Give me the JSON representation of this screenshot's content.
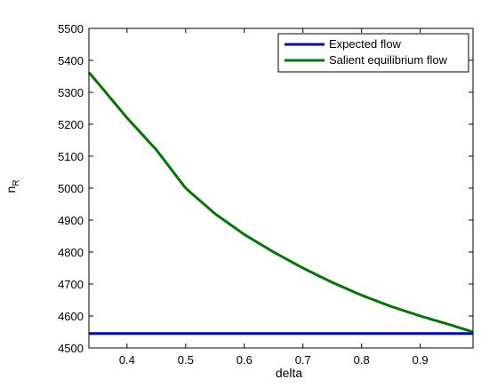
{
  "chart_data": {
    "type": "line",
    "xlabel": "delta",
    "ylabel": "n",
    "ylabel_subscript": "R",
    "xlim": [
      0.335,
      0.99
    ],
    "ylim": [
      4500,
      5500
    ],
    "xticks": [
      "0.4",
      "0.5",
      "0.6",
      "0.7",
      "0.8",
      "0.9"
    ],
    "xtick_values": [
      0.4,
      0.5,
      0.6,
      0.7,
      0.8,
      0.9
    ],
    "yticks": [
      "4500",
      "4600",
      "4700",
      "4800",
      "4900",
      "5000",
      "5100",
      "5200",
      "5300",
      "5400",
      "5500"
    ],
    "ytick_values": [
      4500,
      4600,
      4700,
      4800,
      4900,
      5000,
      5100,
      5200,
      5300,
      5400,
      5500
    ],
    "grid": false,
    "legend_position": "top-right",
    "series": [
      {
        "name": "Expected flow",
        "color": "#0000cc",
        "x": [
          0.335,
          0.99
        ],
        "y": [
          4545,
          4545
        ]
      },
      {
        "name": "Salient equilibrium flow",
        "color": "#007700",
        "x": [
          0.335,
          0.35,
          0.4,
          0.45,
          0.5,
          0.55,
          0.6,
          0.65,
          0.7,
          0.75,
          0.8,
          0.85,
          0.9,
          0.95,
          0.99
        ],
        "y": [
          5362,
          5330,
          5220,
          5120,
          5000,
          4920,
          4855,
          4800,
          4750,
          4705,
          4665,
          4630,
          4600,
          4573,
          4550
        ]
      }
    ]
  }
}
